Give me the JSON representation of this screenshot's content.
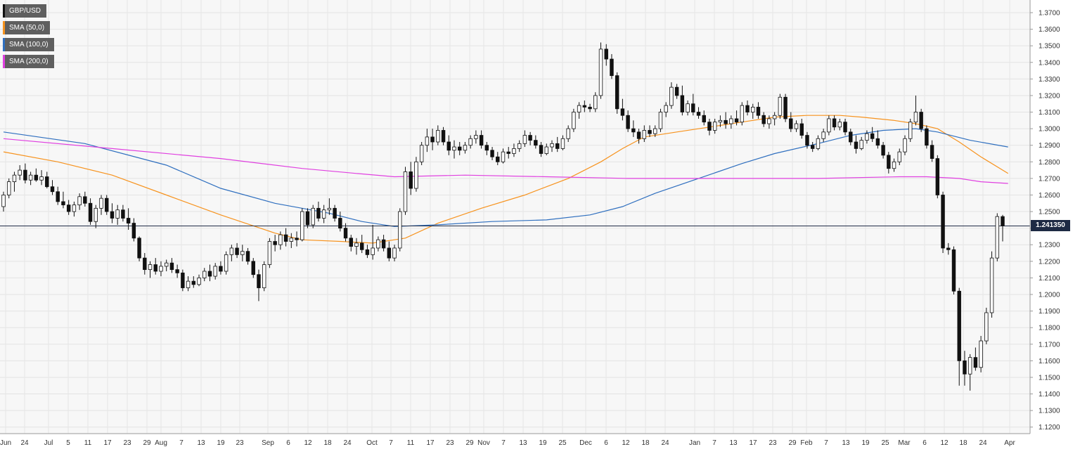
{
  "chart_data": {
    "type": "candlestick",
    "title": "",
    "symbol": "GBP/USD",
    "xlabel": "",
    "ylabel": "",
    "ylim": [
      1.115,
      1.38
    ],
    "grid": true,
    "legend_position": "top-left",
    "y_ticks": [
      "1.3700",
      "1.3600",
      "1.3500",
      "1.3400",
      "1.3300",
      "1.3200",
      "1.3100",
      "1.3000",
      "1.2900",
      "1.2800",
      "1.2700",
      "1.2600",
      "1.2500",
      "1.2400",
      "1.2300",
      "1.2200",
      "1.2100",
      "1.2000",
      "1.1900",
      "1.1800",
      "1.1700",
      "1.1600",
      "1.1500",
      "1.1400",
      "1.1300",
      "1.1200"
    ],
    "x_ticks": [
      "Jun",
      "24",
      "Jul",
      "5",
      "11",
      "17",
      "23",
      "29",
      "Aug",
      "7",
      "13",
      "19",
      "23",
      "Sep",
      "6",
      "12",
      "18",
      "24",
      "Oct",
      "7",
      "11",
      "17",
      "23",
      "29",
      "Nov",
      "7",
      "13",
      "19",
      "25",
      "Dec",
      "6",
      "12",
      "18",
      "24",
      "Jan",
      "7",
      "13",
      "17",
      "23",
      "29",
      "Feb",
      "7",
      "13",
      "19",
      "25",
      "Mar",
      "6",
      "12",
      "18",
      "24",
      "Apr"
    ],
    "last_price": "1.241350",
    "last_price_value": 1.24135,
    "legend": [
      {
        "name": "GBP/USD",
        "color": "#111111"
      },
      {
        "name": "SMA (50,0)",
        "color": "#f7931e"
      },
      {
        "name": "SMA (100,0)",
        "color": "#2f6fbf"
      },
      {
        "name": "SMA (200,0)",
        "color": "#e040e0"
      }
    ],
    "candles": [
      [
        1.253,
        1.262,
        1.25,
        1.26
      ],
      [
        1.26,
        1.27,
        1.258,
        1.268
      ],
      [
        1.268,
        1.274,
        1.262,
        1.272
      ],
      [
        1.272,
        1.278,
        1.269,
        1.275
      ],
      [
        1.275,
        1.279,
        1.267,
        1.269
      ],
      [
        1.269,
        1.274,
        1.266,
        1.272
      ],
      [
        1.272,
        1.276,
        1.268,
        1.269
      ],
      [
        1.269,
        1.275,
        1.266,
        1.271
      ],
      [
        1.271,
        1.274,
        1.264,
        1.265
      ],
      [
        1.265,
        1.269,
        1.26,
        1.262
      ],
      [
        1.262,
        1.265,
        1.254,
        1.256
      ],
      [
        1.256,
        1.262,
        1.252,
        1.254
      ],
      [
        1.254,
        1.257,
        1.248,
        1.25
      ],
      [
        1.25,
        1.256,
        1.247,
        1.254
      ],
      [
        1.254,
        1.261,
        1.251,
        1.259
      ],
      [
        1.259,
        1.262,
        1.253,
        1.255
      ],
      [
        1.255,
        1.258,
        1.242,
        1.244
      ],
      [
        1.244,
        1.254,
        1.24,
        1.252
      ],
      [
        1.252,
        1.26,
        1.248,
        1.258
      ],
      [
        1.258,
        1.26,
        1.248,
        1.25
      ],
      [
        1.25,
        1.255,
        1.243,
        1.246
      ],
      [
        1.246,
        1.254,
        1.242,
        1.251
      ],
      [
        1.251,
        1.254,
        1.244,
        1.246
      ],
      [
        1.246,
        1.252,
        1.239,
        1.243
      ],
      [
        1.243,
        1.246,
        1.232,
        1.234
      ],
      [
        1.234,
        1.235,
        1.22,
        1.222
      ],
      [
        1.222,
        1.225,
        1.212,
        1.215
      ],
      [
        1.215,
        1.22,
        1.21,
        1.218
      ],
      [
        1.218,
        1.222,
        1.212,
        1.214
      ],
      [
        1.214,
        1.22,
        1.211,
        1.217
      ],
      [
        1.217,
        1.221,
        1.214,
        1.219
      ],
      [
        1.219,
        1.222,
        1.213,
        1.215
      ],
      [
        1.215,
        1.218,
        1.21,
        1.213
      ],
      [
        1.213,
        1.215,
        1.202,
        1.204
      ],
      [
        1.204,
        1.211,
        1.202,
        1.208
      ],
      [
        1.208,
        1.211,
        1.204,
        1.206
      ],
      [
        1.206,
        1.212,
        1.205,
        1.21
      ],
      [
        1.21,
        1.216,
        1.208,
        1.214
      ],
      [
        1.214,
        1.218,
        1.208,
        1.211
      ],
      [
        1.211,
        1.219,
        1.209,
        1.217
      ],
      [
        1.217,
        1.22,
        1.212,
        1.214
      ],
      [
        1.214,
        1.226,
        1.212,
        1.224
      ],
      [
        1.224,
        1.23,
        1.22,
        1.228
      ],
      [
        1.228,
        1.231,
        1.222,
        1.224
      ],
      [
        1.224,
        1.23,
        1.22,
        1.226
      ],
      [
        1.226,
        1.228,
        1.218,
        1.22
      ],
      [
        1.22,
        1.222,
        1.21,
        1.212
      ],
      [
        1.212,
        1.215,
        1.196,
        1.204
      ],
      [
        1.204,
        1.22,
        1.202,
        1.218
      ],
      [
        1.218,
        1.234,
        1.216,
        1.232
      ],
      [
        1.232,
        1.236,
        1.226,
        1.23
      ],
      [
        1.23,
        1.238,
        1.227,
        1.236
      ],
      [
        1.236,
        1.24,
        1.229,
        1.232
      ],
      [
        1.232,
        1.237,
        1.228,
        1.234
      ],
      [
        1.234,
        1.238,
        1.229,
        1.233
      ],
      [
        1.233,
        1.252,
        1.232,
        1.25
      ],
      [
        1.25,
        1.252,
        1.24,
        1.242
      ],
      [
        1.242,
        1.254,
        1.24,
        1.252
      ],
      [
        1.252,
        1.256,
        1.244,
        1.246
      ],
      [
        1.246,
        1.254,
        1.243,
        1.251
      ],
      [
        1.251,
        1.258,
        1.248,
        1.252
      ],
      [
        1.252,
        1.254,
        1.244,
        1.246
      ],
      [
        1.246,
        1.25,
        1.238,
        1.24
      ],
      [
        1.24,
        1.243,
        1.232,
        1.234
      ],
      [
        1.234,
        1.236,
        1.226,
        1.229
      ],
      [
        1.229,
        1.234,
        1.224,
        1.231
      ],
      [
        1.231,
        1.236,
        1.225,
        1.227
      ],
      [
        1.227,
        1.23,
        1.222,
        1.224
      ],
      [
        1.224,
        1.242,
        1.221,
        1.228
      ],
      [
        1.228,
        1.235,
        1.226,
        1.233
      ],
      [
        1.233,
        1.236,
        1.226,
        1.228
      ],
      [
        1.228,
        1.232,
        1.22,
        1.222
      ],
      [
        1.222,
        1.23,
        1.22,
        1.228
      ],
      [
        1.228,
        1.252,
        1.226,
        1.25
      ],
      [
        1.25,
        1.277,
        1.248,
        1.274
      ],
      [
        1.274,
        1.28,
        1.26,
        1.264
      ],
      [
        1.264,
        1.283,
        1.262,
        1.28
      ],
      [
        1.28,
        1.292,
        1.278,
        1.29
      ],
      [
        1.29,
        1.3,
        1.286,
        1.295
      ],
      [
        1.295,
        1.3,
        1.287,
        1.292
      ],
      [
        1.292,
        1.302,
        1.29,
        1.299
      ],
      [
        1.299,
        1.301,
        1.29,
        1.292
      ],
      [
        1.292,
        1.296,
        1.284,
        1.287
      ],
      [
        1.287,
        1.293,
        1.282,
        1.289
      ],
      [
        1.289,
        1.292,
        1.284,
        1.287
      ],
      [
        1.287,
        1.292,
        1.285,
        1.29
      ],
      [
        1.29,
        1.296,
        1.288,
        1.294
      ],
      [
        1.294,
        1.299,
        1.291,
        1.296
      ],
      [
        1.296,
        1.299,
        1.288,
        1.29
      ],
      [
        1.29,
        1.292,
        1.284,
        1.287
      ],
      [
        1.287,
        1.289,
        1.281,
        1.283
      ],
      [
        1.283,
        1.286,
        1.278,
        1.28
      ],
      [
        1.28,
        1.288,
        1.279,
        1.286
      ],
      [
        1.286,
        1.289,
        1.282,
        1.285
      ],
      [
        1.285,
        1.291,
        1.283,
        1.288
      ],
      [
        1.288,
        1.293,
        1.286,
        1.291
      ],
      [
        1.291,
        1.299,
        1.289,
        1.296
      ],
      [
        1.296,
        1.298,
        1.29,
        1.293
      ],
      [
        1.293,
        1.296,
        1.288,
        1.29
      ],
      [
        1.29,
        1.292,
        1.283,
        1.285
      ],
      [
        1.285,
        1.291,
        1.284,
        1.289
      ],
      [
        1.289,
        1.293,
        1.286,
        1.291
      ],
      [
        1.291,
        1.295,
        1.286,
        1.288
      ],
      [
        1.288,
        1.296,
        1.287,
        1.294
      ],
      [
        1.294,
        1.302,
        1.292,
        1.3
      ],
      [
        1.3,
        1.312,
        1.298,
        1.31
      ],
      [
        1.31,
        1.316,
        1.306,
        1.314
      ],
      [
        1.314,
        1.317,
        1.31,
        1.313
      ],
      [
        1.313,
        1.315,
        1.31,
        1.312
      ],
      [
        1.312,
        1.322,
        1.31,
        1.32
      ],
      [
        1.32,
        1.352,
        1.318,
        1.348
      ],
      [
        1.348,
        1.351,
        1.338,
        1.342
      ],
      [
        1.342,
        1.345,
        1.33,
        1.332
      ],
      [
        1.332,
        1.334,
        1.309,
        1.312
      ],
      [
        1.312,
        1.318,
        1.305,
        1.308
      ],
      [
        1.308,
        1.311,
        1.298,
        1.3
      ],
      [
        1.3,
        1.305,
        1.295,
        1.298
      ],
      [
        1.298,
        1.3,
        1.291,
        1.294
      ],
      [
        1.294,
        1.302,
        1.292,
        1.299
      ],
      [
        1.299,
        1.302,
        1.295,
        1.297
      ],
      [
        1.297,
        1.302,
        1.295,
        1.3
      ],
      [
        1.3,
        1.312,
        1.298,
        1.31
      ],
      [
        1.31,
        1.316,
        1.307,
        1.314
      ],
      [
        1.314,
        1.328,
        1.312,
        1.325
      ],
      [
        1.325,
        1.327,
        1.318,
        1.32
      ],
      [
        1.32,
        1.326,
        1.308,
        1.31
      ],
      [
        1.31,
        1.317,
        1.308,
        1.315
      ],
      [
        1.315,
        1.321,
        1.308,
        1.31
      ],
      [
        1.31,
        1.313,
        1.306,
        1.308
      ],
      [
        1.308,
        1.311,
        1.302,
        1.304
      ],
      [
        1.304,
        1.306,
        1.296,
        1.299
      ],
      [
        1.299,
        1.306,
        1.297,
        1.304
      ],
      [
        1.304,
        1.308,
        1.301,
        1.305
      ],
      [
        1.305,
        1.31,
        1.3,
        1.303
      ],
      [
        1.303,
        1.308,
        1.3,
        1.306
      ],
      [
        1.306,
        1.311,
        1.302,
        1.304
      ],
      [
        1.304,
        1.316,
        1.302,
        1.314
      ],
      [
        1.314,
        1.317,
        1.308,
        1.31
      ],
      [
        1.31,
        1.315,
        1.306,
        1.313
      ],
      [
        1.313,
        1.316,
        1.306,
        1.308
      ],
      [
        1.308,
        1.31,
        1.301,
        1.303
      ],
      [
        1.303,
        1.308,
        1.3,
        1.306
      ],
      [
        1.306,
        1.31,
        1.302,
        1.308
      ],
      [
        1.308,
        1.321,
        1.306,
        1.319
      ],
      [
        1.319,
        1.321,
        1.304,
        1.306
      ],
      [
        1.306,
        1.31,
        1.298,
        1.3
      ],
      [
        1.3,
        1.305,
        1.298,
        1.303
      ],
      [
        1.303,
        1.306,
        1.294,
        1.296
      ],
      [
        1.296,
        1.298,
        1.288,
        1.29
      ],
      [
        1.29,
        1.292,
        1.286,
        1.288
      ],
      [
        1.288,
        1.296,
        1.287,
        1.294
      ],
      [
        1.294,
        1.3,
        1.292,
        1.298
      ],
      [
        1.298,
        1.308,
        1.296,
        1.306
      ],
      [
        1.306,
        1.308,
        1.299,
        1.301
      ],
      [
        1.301,
        1.306,
        1.299,
        1.304
      ],
      [
        1.304,
        1.306,
        1.296,
        1.298
      ],
      [
        1.298,
        1.3,
        1.29,
        1.292
      ],
      [
        1.292,
        1.296,
        1.285,
        1.288
      ],
      [
        1.288,
        1.295,
        1.287,
        1.293
      ],
      [
        1.293,
        1.299,
        1.291,
        1.297
      ],
      [
        1.297,
        1.301,
        1.292,
        1.294
      ],
      [
        1.294,
        1.299,
        1.288,
        1.29
      ],
      [
        1.29,
        1.292,
        1.282,
        1.284
      ],
      [
        1.284,
        1.286,
        1.273,
        1.276
      ],
      [
        1.276,
        1.282,
        1.274,
        1.28
      ],
      [
        1.28,
        1.288,
        1.278,
        1.286
      ],
      [
        1.286,
        1.296,
        1.284,
        1.294
      ],
      [
        1.294,
        1.306,
        1.292,
        1.304
      ],
      [
        1.304,
        1.32,
        1.302,
        1.31
      ],
      [
        1.31,
        1.312,
        1.298,
        1.3
      ],
      [
        1.3,
        1.302,
        1.288,
        1.29
      ],
      [
        1.29,
        1.293,
        1.28,
        1.282
      ],
      [
        1.282,
        1.284,
        1.258,
        1.26
      ],
      [
        1.26,
        1.262,
        1.225,
        1.228
      ],
      [
        1.228,
        1.231,
        1.224,
        1.227
      ],
      [
        1.227,
        1.229,
        1.2,
        1.202
      ],
      [
        1.202,
        1.204,
        1.145,
        1.16
      ],
      [
        1.16,
        1.166,
        1.145,
        1.152
      ],
      [
        1.152,
        1.164,
        1.142,
        1.162
      ],
      [
        1.162,
        1.168,
        1.154,
        1.156
      ],
      [
        1.156,
        1.175,
        1.153,
        1.172
      ],
      [
        1.172,
        1.192,
        1.17,
        1.189
      ],
      [
        1.189,
        1.226,
        1.186,
        1.222
      ],
      [
        1.222,
        1.249,
        1.22,
        1.247
      ],
      [
        1.247,
        1.248,
        1.232,
        1.2414
      ]
    ],
    "sma50": [
      [
        0,
        1.286
      ],
      [
        10,
        1.28
      ],
      [
        20,
        1.272
      ],
      [
        30,
        1.26
      ],
      [
        40,
        1.248
      ],
      [
        50,
        1.237
      ],
      [
        55,
        1.233
      ],
      [
        62,
        1.232
      ],
      [
        68,
        1.231
      ],
      [
        74,
        1.234
      ],
      [
        80,
        1.243
      ],
      [
        88,
        1.252
      ],
      [
        96,
        1.26
      ],
      [
        104,
        1.27
      ],
      [
        110,
        1.28
      ],
      [
        114,
        1.288
      ],
      [
        118,
        1.295
      ],
      [
        124,
        1.298
      ],
      [
        130,
        1.301
      ],
      [
        136,
        1.304
      ],
      [
        142,
        1.307
      ],
      [
        148,
        1.308
      ],
      [
        154,
        1.308
      ],
      [
        158,
        1.307
      ],
      [
        164,
        1.305
      ],
      [
        168,
        1.303
      ],
      [
        172,
        1.3
      ],
      [
        176,
        1.292
      ],
      [
        180,
        1.283
      ],
      [
        185,
        1.273
      ]
    ],
    "sma100": [
      [
        0,
        1.298
      ],
      [
        15,
        1.291
      ],
      [
        30,
        1.278
      ],
      [
        40,
        1.264
      ],
      [
        50,
        1.255
      ],
      [
        60,
        1.249
      ],
      [
        66,
        1.244
      ],
      [
        72,
        1.241
      ],
      [
        80,
        1.242
      ],
      [
        90,
        1.244
      ],
      [
        100,
        1.245
      ],
      [
        108,
        1.248
      ],
      [
        114,
        1.253
      ],
      [
        120,
        1.261
      ],
      [
        128,
        1.27
      ],
      [
        136,
        1.279
      ],
      [
        142,
        1.285
      ],
      [
        150,
        1.291
      ],
      [
        156,
        1.296
      ],
      [
        162,
        1.299
      ],
      [
        168,
        1.3
      ],
      [
        172,
        1.298
      ],
      [
        178,
        1.293
      ],
      [
        185,
        1.289
      ]
    ],
    "sma200": [
      [
        0,
        1.294
      ],
      [
        20,
        1.288
      ],
      [
        40,
        1.282
      ],
      [
        55,
        1.276
      ],
      [
        65,
        1.273
      ],
      [
        72,
        1.271
      ],
      [
        85,
        1.272
      ],
      [
        100,
        1.271
      ],
      [
        115,
        1.27
      ],
      [
        130,
        1.27
      ],
      [
        150,
        1.27
      ],
      [
        165,
        1.271
      ],
      [
        170,
        1.271
      ],
      [
        176,
        1.27
      ],
      [
        180,
        1.268
      ],
      [
        185,
        1.267
      ]
    ]
  }
}
